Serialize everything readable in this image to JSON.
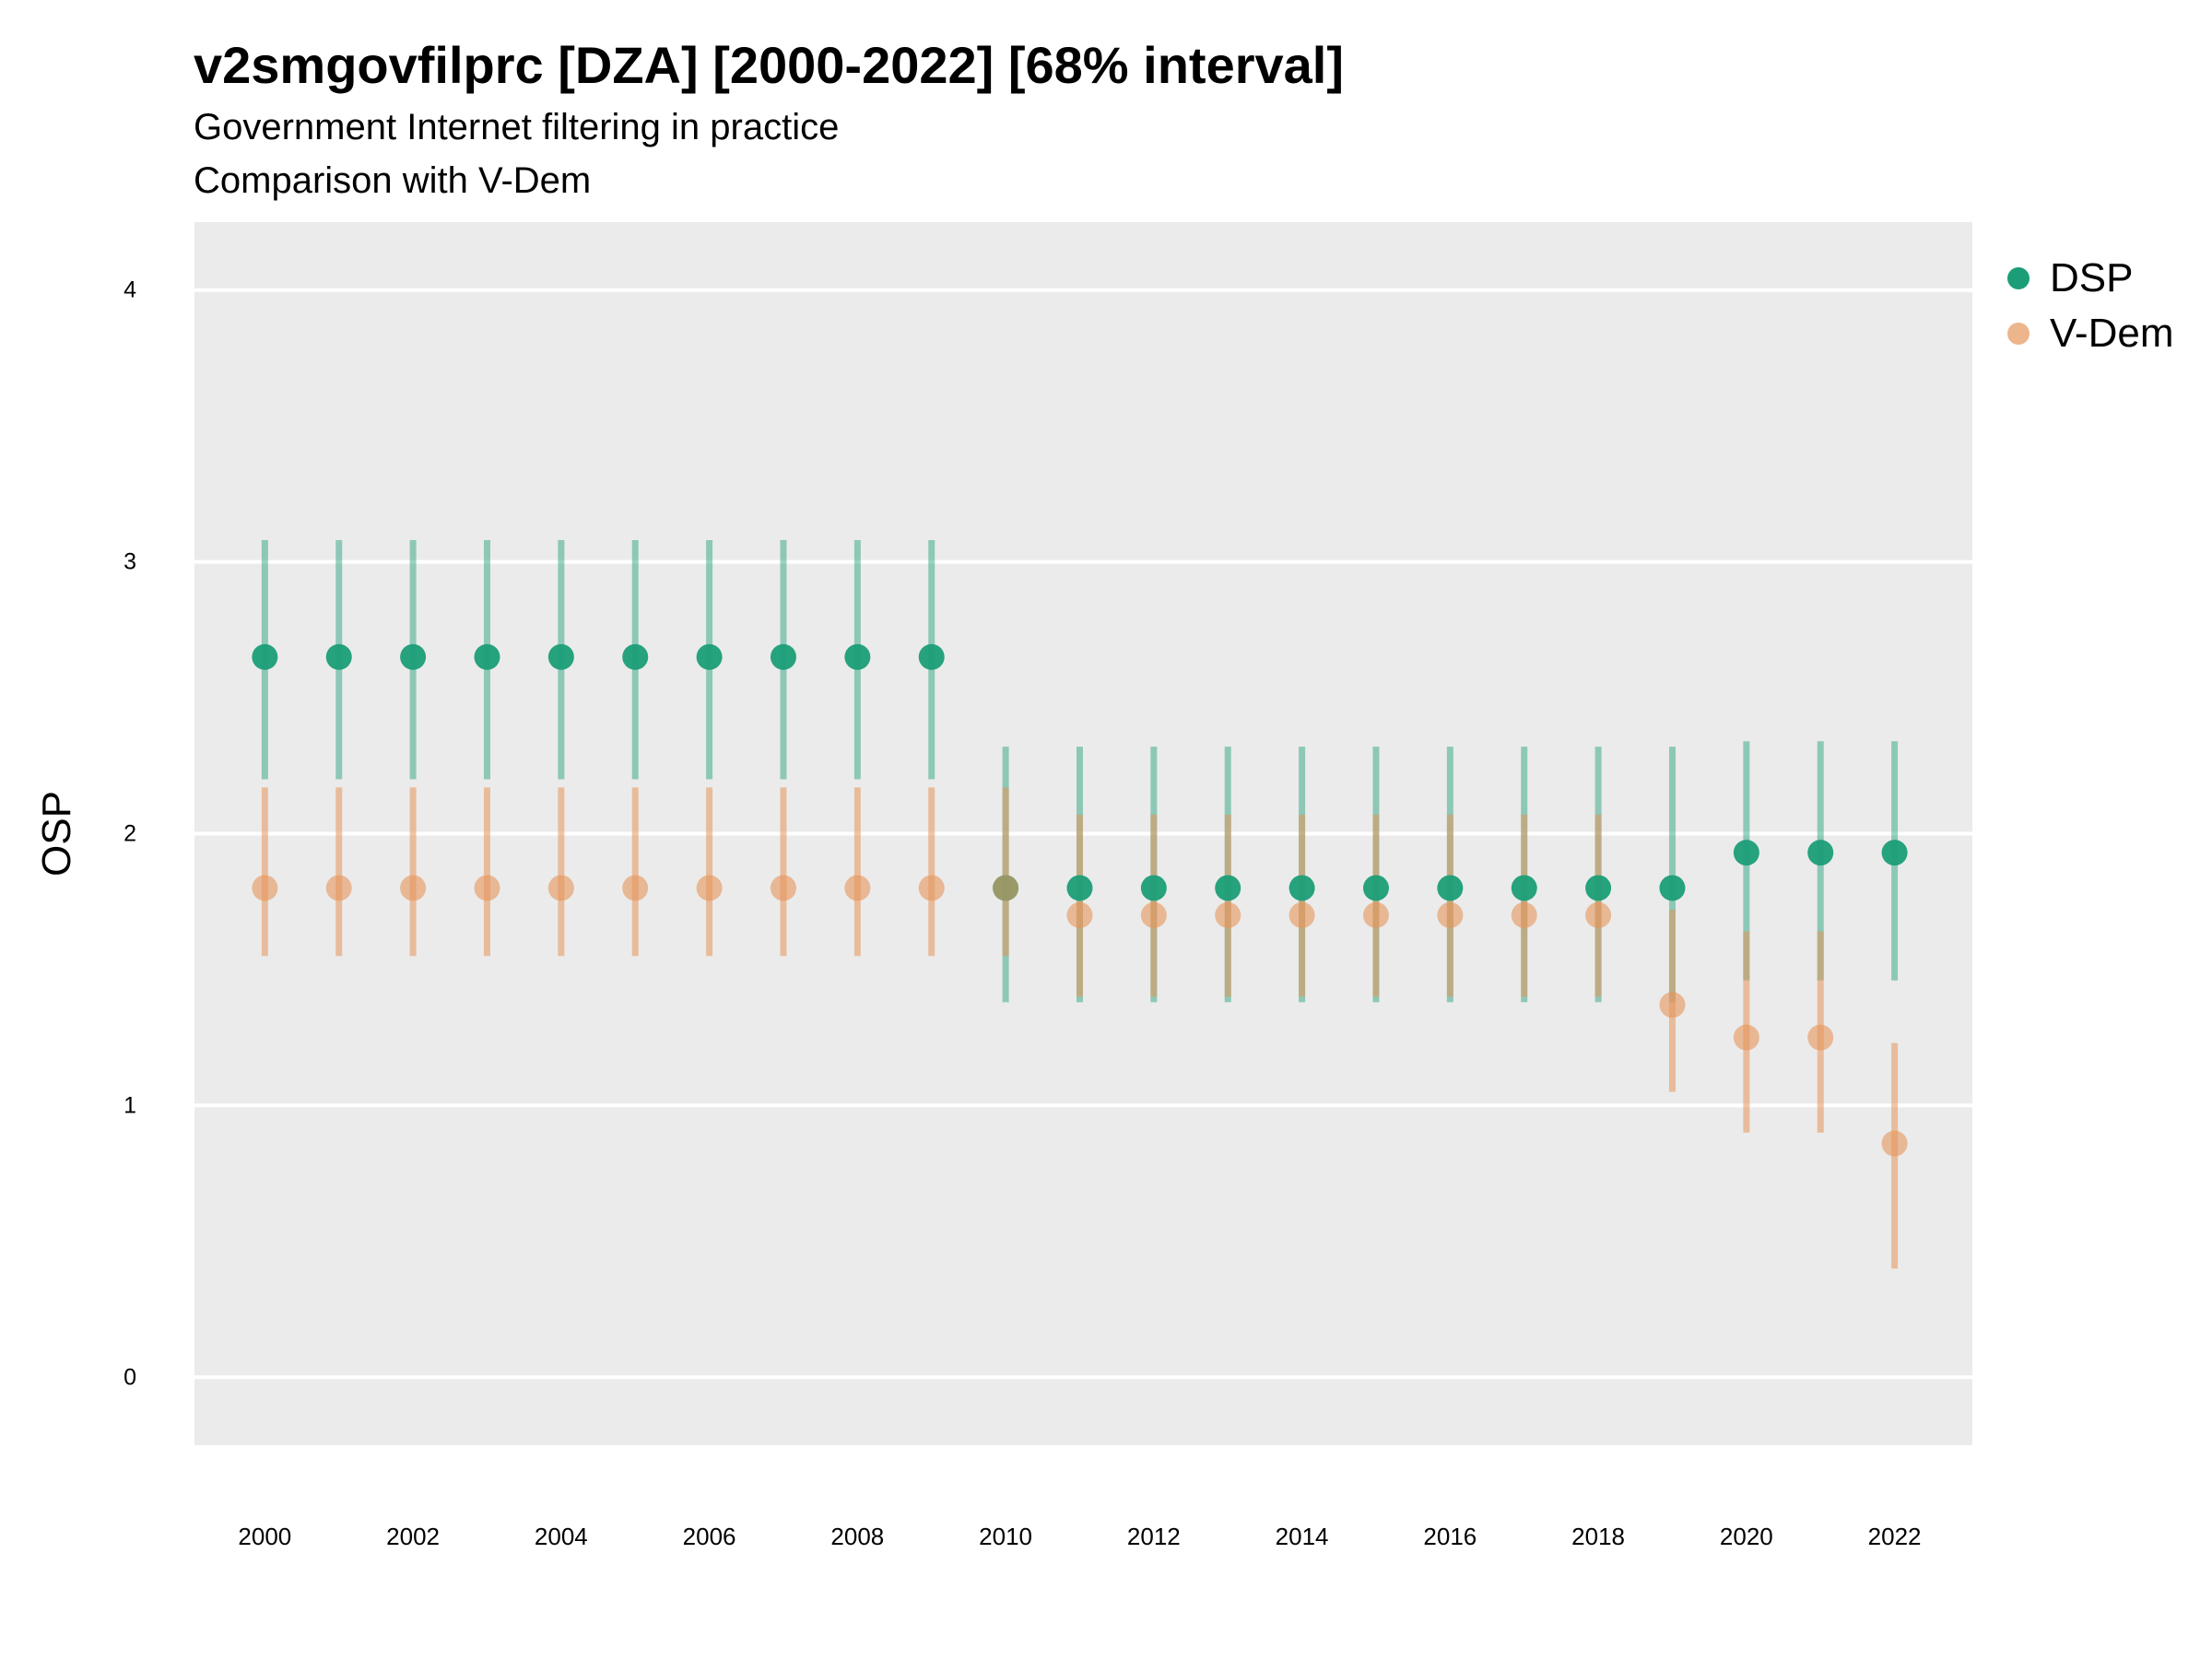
{
  "title": "v2smgovfilprc [DZA] [2000-2022] [68% interval]",
  "subtitle": "Government Internet filtering in practice",
  "caption": "Comparison with V-Dem",
  "colors": {
    "panel_bg": "#EBEBEB",
    "grid": "#FFFFFF",
    "dsp": "#1B9E77",
    "vdem": "#E6955A"
  },
  "chart_data": {
    "type": "scatter",
    "title": "v2smgovfilprc [DZA] [2000-2022] [68% interval]",
    "subtitle": "Government Internet filtering in practice",
    "xlabel": "",
    "ylabel": "OSP",
    "ylim": [
      -0.25,
      4.25
    ],
    "xlim": [
      1999.05,
      2023.05
    ],
    "y_ticks": [
      0,
      1,
      2,
      3,
      4
    ],
    "x_ticks": [
      2000,
      2002,
      2004,
      2006,
      2008,
      2010,
      2012,
      2014,
      2016,
      2018,
      2020,
      2022
    ],
    "grid": "horizontal",
    "legend_position": "right",
    "series": [
      {
        "name": "DSP",
        "color": "#1B9E77",
        "x": [
          2000,
          2001,
          2002,
          2003,
          2004,
          2005,
          2006,
          2007,
          2008,
          2009,
          2010,
          2011,
          2012,
          2013,
          2014,
          2015,
          2016,
          2017,
          2018,
          2019,
          2020,
          2021,
          2022
        ],
        "y": [
          2.65,
          2.65,
          2.65,
          2.65,
          2.65,
          2.65,
          2.65,
          2.65,
          2.65,
          2.65,
          1.8,
          1.8,
          1.8,
          1.8,
          1.8,
          1.8,
          1.8,
          1.8,
          1.8,
          1.8,
          1.93,
          1.93,
          1.93
        ],
        "lower": [
          2.2,
          2.2,
          2.2,
          2.2,
          2.2,
          2.2,
          2.2,
          2.2,
          2.2,
          2.2,
          1.38,
          1.38,
          1.38,
          1.38,
          1.38,
          1.38,
          1.38,
          1.38,
          1.38,
          1.38,
          1.46,
          1.46,
          1.46
        ],
        "upper": [
          3.08,
          3.08,
          3.08,
          3.08,
          3.08,
          3.08,
          3.08,
          3.08,
          3.08,
          3.08,
          2.32,
          2.32,
          2.32,
          2.32,
          2.32,
          2.32,
          2.32,
          2.32,
          2.32,
          2.32,
          2.34,
          2.34,
          2.34
        ]
      },
      {
        "name": "V-Dem",
        "color": "#E6955A",
        "x": [
          2000,
          2001,
          2002,
          2003,
          2004,
          2005,
          2006,
          2007,
          2008,
          2009,
          2010,
          2011,
          2012,
          2013,
          2014,
          2015,
          2016,
          2017,
          2018,
          2019,
          2020,
          2021,
          2022
        ],
        "y": [
          1.8,
          1.8,
          1.8,
          1.8,
          1.8,
          1.8,
          1.8,
          1.8,
          1.8,
          1.8,
          1.8,
          1.7,
          1.7,
          1.7,
          1.7,
          1.7,
          1.7,
          1.7,
          1.7,
          1.37,
          1.25,
          1.25,
          0.86
        ],
        "lower": [
          1.55,
          1.55,
          1.55,
          1.55,
          1.55,
          1.55,
          1.55,
          1.55,
          1.55,
          1.55,
          1.55,
          1.4,
          1.4,
          1.4,
          1.4,
          1.4,
          1.4,
          1.4,
          1.4,
          1.05,
          0.9,
          0.9,
          0.4
        ],
        "upper": [
          2.17,
          2.17,
          2.17,
          2.17,
          2.17,
          2.17,
          2.17,
          2.17,
          2.17,
          2.17,
          2.17,
          2.07,
          2.07,
          2.07,
          2.07,
          2.07,
          2.07,
          2.07,
          2.07,
          1.72,
          1.64,
          1.64,
          1.23
        ]
      }
    ]
  }
}
